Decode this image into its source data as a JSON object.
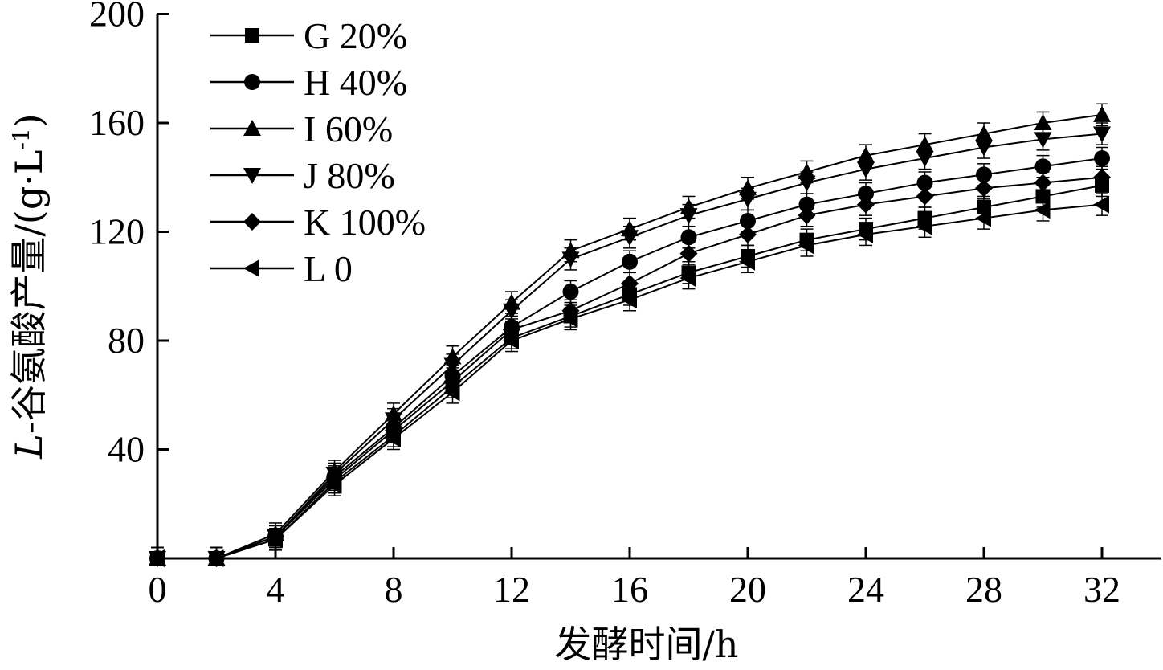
{
  "chart_data": {
    "type": "line",
    "title": "",
    "xlabel": "发酵时间/h",
    "ylabel": "L-谷氨酸产量/(g·L⁻¹)",
    "ylabel_italic_part": "L",
    "ylabel_rest": "-谷氨酸产量/(g·L",
    "ylabel_sup": "-1",
    "ylabel_close": ")",
    "xlim": [
      0,
      34
    ],
    "ylim": [
      0,
      200
    ],
    "x_ticks": [
      0,
      4,
      8,
      12,
      16,
      20,
      24,
      28,
      32
    ],
    "y_ticks": [
      40,
      80,
      120,
      160,
      200
    ],
    "grid": false,
    "legend_position": "top-left",
    "error_bars": true,
    "x": [
      0,
      2,
      4,
      6,
      8,
      10,
      12,
      14,
      16,
      18,
      20,
      22,
      24,
      26,
      28,
      30,
      32
    ],
    "series": [
      {
        "name": "G 20%",
        "marker": "square",
        "values": [
          0,
          0,
          7,
          28,
          45,
          63,
          81,
          89,
          97,
          105,
          111,
          117,
          121,
          125,
          129,
          133,
          137
        ]
      },
      {
        "name": "H 40%",
        "marker": "circle",
        "values": [
          0,
          0,
          8,
          30,
          48,
          67,
          85,
          98,
          109,
          118,
          124,
          130,
          134,
          138,
          141,
          144,
          147
        ]
      },
      {
        "name": "I 60%",
        "marker": "triangle-up",
        "values": [
          0,
          0,
          9,
          32,
          53,
          74,
          94,
          113,
          121,
          129,
          136,
          142,
          148,
          152,
          156,
          160,
          163
        ]
      },
      {
        "name": "J 80%",
        "marker": "triangle-down",
        "values": [
          0,
          0,
          8,
          31,
          51,
          71,
          91,
          110,
          118,
          126,
          132,
          138,
          143,
          147,
          151,
          154,
          156
        ]
      },
      {
        "name": "K 100%",
        "marker": "diamond",
        "values": [
          0,
          0,
          8,
          29,
          47,
          65,
          84,
          91,
          101,
          112,
          119,
          126,
          130,
          133,
          136,
          138,
          140
        ]
      },
      {
        "name": "L 0",
        "marker": "triangle-left",
        "values": [
          0,
          0,
          7,
          27,
          44,
          61,
          80,
          88,
          95,
          103,
          109,
          115,
          119,
          122,
          125,
          128,
          130
        ]
      }
    ],
    "error_bar_half_width": 4
  }
}
